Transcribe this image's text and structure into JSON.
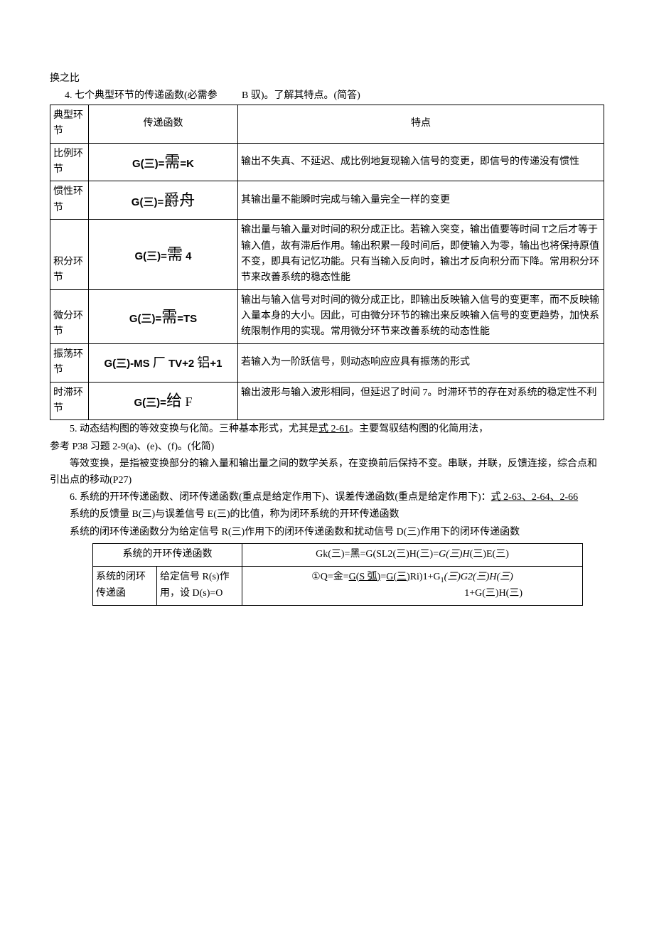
{
  "intro": {
    "line1": "换之比",
    "line2_left": "4. 七个典型环节的传递函数(必需参",
    "line2_right": "B 驭)。了解其特点。(简答)"
  },
  "table1": {
    "header": {
      "col1": "典型环节",
      "col2": "传递函数",
      "col3": "特点"
    },
    "rows": [
      {
        "type": "比例环节",
        "func_prefix": "G(三)=",
        "func_cn": "需",
        "func_suffix": "=K",
        "feature": "输出不失真、不延迟、成比例地复现输入信号的变更，即信号的传递没有惯性"
      },
      {
        "type": "惯性环节",
        "func_prefix": "G(三)=",
        "func_cn": "爵舟",
        "func_suffix": "",
        "feature": "其输出量不能瞬时完成与输入量完全一样的变更"
      },
      {
        "type": "积分环节",
        "func_prefix": "G(三)=",
        "func_cn": "需",
        "func_suffix": "  4",
        "feature": "输出量与输入量对时间的积分成正比。若输入突变，输出值要等时间 T之后才等于输入值，故有滞后作用。输出积累一段时间后，即使输入为零，输出也将保持原值不变，即具有记忆功能。只有当输入反向时，输出才反向积分而下降。常用积分环节来改善系统的稳态性能"
      },
      {
        "type": "微分环节",
        "func_prefix": "G(三)=",
        "func_cn": "需",
        "func_suffix": "=TS",
        "feature": "输出与输入信号对时间的微分成正比，即输出反映输入信号的变更率，而不反映输入量本身的大小。因此，可由微分环节的输出来反映输入信号的变更趋势，加快系统限制作用的实现。常用微分环节来改善系统的动态性能"
      },
      {
        "type": "振荡环节",
        "func_full": "G(三)-MS 厂 TV+2 铝+1",
        "feature": "若输入为一阶跃信号，则动态响应应具有振荡的形式"
      },
      {
        "type": "时滞环节",
        "func_prefix": "G(三)=",
        "func_cn": "给",
        "func_suffix": " F",
        "feature": "输出波形与输入波形相同，但延迟了时间 7。时滞环节的存在对系统的稳定性不利"
      }
    ]
  },
  "paragraphs": {
    "p1_pre": "5. 动态结构图的等效变换与化简。三种基本形式，尤其是",
    "p1_u": "式 2-61",
    "p1_post": "。主要驾驭结构图的化简用法，",
    "p2": "参考 P38 习题 2-9(a)、(e)、(f)。(化简)",
    "p3": "等效变换，是指被变换部分的输入量和输出量之间的数学关系，在变换前后保持不变。串联，并联，反馈连接，综合点和引出点的移动(P27)",
    "p4_pre": "6. 系统的开环传递函数、闭环传递函数(重点是给定作用下)、误差传递函数(重点是给定作用下)：",
    "p4_u": "式 2-63、2-64、2-66",
    "p5": "系统的反馈量 B(三)与误差信号 E(三)的比值，称为闭环系统的开环传递函数",
    "p6": "系统的闭环传递函数分为给定信号 R(三)作用下的闭环传递函数和扰动信号 D(三)作用下的闭环传递函数"
  },
  "table2": {
    "r1c1": "系统的开环传递函数",
    "r1c2_a": "Gk(三)=黑=G(SL2(三)H(三)=",
    "r1c2_b": "G(三)H",
    "r1c2_c": "(三)E(三)",
    "r2c1": "系统的闭环传递函",
    "r2c2": "给定信号 R(s)作用，设 D(s)=O",
    "r2c3_line1_a": "①Q=金=",
    "r2c3_line1_u1": "G(S 弧)",
    "r2c3_line1_b": "=",
    "r2c3_line1_u2": "G(三)",
    "r2c3_line1_c": "Ri)1+G",
    "r2c3_line1_sub": "1",
    "r2c3_line1_d": "(三)G2(三)H(三)",
    "r2c3_line2": "1+G(三)H(三)"
  }
}
